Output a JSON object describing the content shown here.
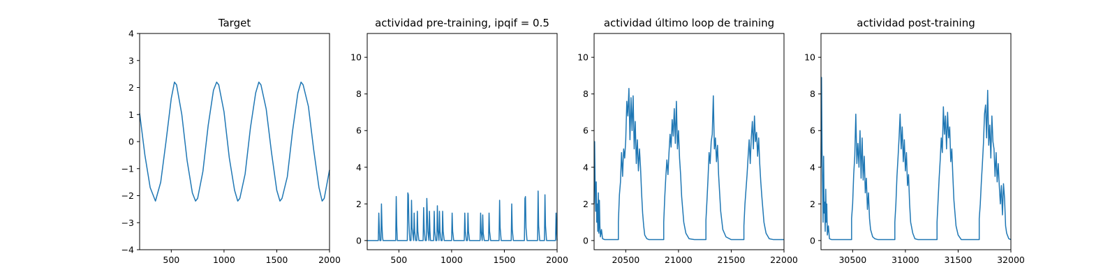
{
  "colors": {
    "series": "#1f77b4",
    "axes": "#000000"
  },
  "chart_data": [
    {
      "type": "line",
      "title": "Target",
      "xlabel": "",
      "ylabel": "",
      "xlim": [
        200,
        2000
      ],
      "ylim": [
        -4,
        4
      ],
      "xticks": [
        500,
        1000,
        1500,
        2000
      ],
      "yticks": [
        -4,
        -3,
        -2,
        -1,
        0,
        1,
        2,
        3,
        4
      ],
      "ytick_labels": [
        "−4",
        "−3",
        "−2",
        "−1",
        "0",
        "1",
        "2",
        "3",
        "4"
      ],
      "grid": false,
      "series": [
        {
          "x": [
            200,
            250,
            300,
            350,
            400,
            450,
            500,
            530,
            550,
            600,
            650,
            700,
            730,
            750,
            800,
            850,
            900,
            930,
            950,
            1000,
            1050,
            1100,
            1130,
            1150,
            1200,
            1250,
            1300,
            1330,
            1350,
            1400,
            1450,
            1500,
            1530,
            1550,
            1600,
            1650,
            1700,
            1730,
            1750,
            1800,
            1850,
            1900,
            1930,
            1950,
            2000
          ],
          "y": [
            1.05,
            -0.5,
            -1.7,
            -2.2,
            -1.5,
            0.0,
            1.6,
            2.2,
            2.1,
            1.0,
            -0.7,
            -1.9,
            -2.2,
            -2.1,
            -1.1,
            0.6,
            1.9,
            2.2,
            2.1,
            1.1,
            -0.6,
            -1.8,
            -2.2,
            -2.1,
            -1.2,
            0.5,
            1.8,
            2.2,
            2.1,
            1.2,
            -0.4,
            -1.8,
            -2.2,
            -2.1,
            -1.3,
            0.4,
            1.8,
            2.2,
            2.1,
            1.3,
            -0.3,
            -1.7,
            -2.2,
            -2.1,
            -1.05
          ]
        }
      ]
    },
    {
      "type": "line",
      "title": "actividad pre-training, ipqif = 0.5",
      "xlabel": "",
      "ylabel": "",
      "xlim": [
        200,
        2000
      ],
      "ylim": [
        -0.5,
        11.3
      ],
      "xticks": [
        500,
        1000,
        1500,
        2000
      ],
      "yticks": [
        0,
        2,
        4,
        6,
        8,
        10
      ],
      "grid": false,
      "series": [
        {
          "x": [
            200,
            305,
            310,
            315,
            320,
            330,
            335,
            340,
            345,
            350,
            360,
            370,
            470,
            475,
            480,
            485,
            495,
            500,
            580,
            585,
            590,
            595,
            600,
            605,
            615,
            620,
            625,
            640,
            645,
            650,
            660,
            670,
            675,
            680,
            690,
            700,
            730,
            735,
            740,
            750,
            760,
            765,
            770,
            775,
            785,
            790,
            795,
            800,
            810,
            820,
            830,
            835,
            840,
            850,
            860,
            865,
            870,
            880,
            885,
            890,
            900,
            910,
            915,
            920,
            930,
            940,
            1000,
            1005,
            1010,
            1020,
            1030,
            1120,
            1125,
            1130,
            1140,
            1150,
            1155,
            1160,
            1170,
            1180,
            1270,
            1275,
            1280,
            1290,
            1295,
            1300,
            1310,
            1320,
            1350,
            1355,
            1360,
            1370,
            1380,
            1450,
            1455,
            1460,
            1470,
            1480,
            1500,
            1565,
            1570,
            1575,
            1585,
            1595,
            1690,
            1695,
            1700,
            1705,
            1715,
            1725,
            1815,
            1820,
            1825,
            1835,
            1845,
            1880,
            1885,
            1890,
            1900,
            1910,
            1985,
            1990,
            1995,
            2000
          ],
          "y": [
            0,
            0,
            1.5,
            0.6,
            0,
            0,
            2.0,
            0.8,
            0.2,
            0,
            0,
            0,
            0,
            2.4,
            0.8,
            0,
            0,
            0,
            0,
            2.6,
            2.5,
            1.0,
            0.4,
            0,
            0,
            2.2,
            0.7,
            0,
            1.5,
            0.5,
            0,
            0,
            1.6,
            0.5,
            0,
            0,
            0,
            1.8,
            0.6,
            0,
            0,
            2.3,
            1.4,
            0.5,
            0,
            1.6,
            0.5,
            0,
            0,
            0,
            0,
            1.6,
            0.5,
            0,
            0,
            1.9,
            0.6,
            0,
            1.6,
            0.5,
            0,
            0,
            1.6,
            0.5,
            0,
            0,
            0,
            1.5,
            0.5,
            0,
            0,
            0,
            1.5,
            0.5,
            0,
            0,
            1.5,
            0.5,
            0,
            0,
            0,
            1.5,
            0.5,
            0,
            1.4,
            0.4,
            0,
            0,
            0,
            1.5,
            0.5,
            0,
            0,
            0,
            2.2,
            0.7,
            0,
            0,
            0,
            0,
            2.0,
            0.6,
            0,
            0,
            0,
            2.3,
            2.4,
            0.7,
            0,
            0,
            0,
            2.7,
            0.8,
            0,
            0,
            0,
            2.5,
            0.8,
            0,
            0,
            0,
            1.5,
            0.5,
            0
          ]
        }
      ]
    },
    {
      "type": "line",
      "title": "actividad último loop de training",
      "xlabel": "",
      "ylabel": "",
      "xlim": [
        20200,
        22000
      ],
      "ylim": [
        -0.5,
        11.3
      ],
      "xticks": [
        20500,
        21000,
        21500,
        22000
      ],
      "yticks": [
        0,
        2,
        4,
        6,
        8,
        10
      ],
      "grid": false,
      "series": [
        {
          "x": [
            20200,
            20205,
            20210,
            20215,
            20220,
            20225,
            20230,
            20235,
            20240,
            20245,
            20250,
            20255,
            20260,
            20270,
            20280,
            20300,
            20350,
            20400,
            20430,
            20430,
            20440,
            20450,
            20460,
            20470,
            20480,
            20490,
            20500,
            20510,
            20520,
            20530,
            20540,
            20550,
            20560,
            20570,
            20580,
            20590,
            20600,
            20610,
            20620,
            20630,
            20640,
            20650,
            20660,
            20670,
            20680,
            20700,
            20720,
            20750,
            20800,
            20860,
            20860,
            20870,
            20880,
            20890,
            20900,
            20910,
            20920,
            20930,
            20940,
            20950,
            20960,
            20970,
            20980,
            20990,
            21000,
            21010,
            21020,
            21030,
            21050,
            21070,
            21100,
            21150,
            21200,
            21260,
            21260,
            21270,
            21280,
            21290,
            21300,
            21310,
            21320,
            21330,
            21340,
            21350,
            21360,
            21370,
            21380,
            21390,
            21400,
            21420,
            21450,
            21500,
            21550,
            21620,
            21620,
            21630,
            21640,
            21650,
            21660,
            21670,
            21680,
            21690,
            21700,
            21710,
            21720,
            21730,
            21740,
            21750,
            21760,
            21770,
            21780,
            21790,
            21810,
            21830,
            21860,
            21900,
            21950,
            22000
          ],
          "y": [
            2.0,
            5.4,
            3.0,
            1.6,
            3.2,
            1.0,
            2.0,
            0.5,
            2.6,
            0.4,
            2.2,
            0.8,
            0.2,
            0.6,
            0.1,
            0.05,
            0.05,
            0.05,
            0.05,
            1.0,
            2.5,
            3.2,
            4.8,
            3.5,
            5.0,
            4.5,
            5.5,
            7.6,
            6.8,
            8.3,
            5.5,
            7.8,
            6.0,
            7.9,
            5.0,
            6.5,
            4.2,
            5.5,
            3.8,
            5.0,
            4.0,
            2.6,
            1.5,
            0.8,
            0.3,
            0.1,
            0.05,
            0.05,
            0.05,
            0.05,
            1.0,
            2.4,
            3.5,
            4.4,
            3.6,
            4.8,
            5.8,
            5.1,
            6.6,
            5.7,
            7.2,
            5.3,
            7.6,
            5.0,
            6.0,
            4.5,
            3.6,
            2.4,
            1.0,
            0.4,
            0.1,
            0.05,
            0.05,
            0.05,
            1.1,
            2.2,
            3.4,
            4.8,
            4.2,
            5.4,
            5.8,
            7.9,
            5.0,
            5.6,
            4.3,
            5.2,
            3.6,
            2.6,
            1.6,
            0.6,
            0.2,
            0.05,
            0.05,
            0.05,
            0.8,
            2.0,
            2.8,
            3.6,
            4.6,
            5.5,
            4.2,
            5.6,
            6.5,
            5.0,
            6.8,
            5.4,
            5.9,
            4.6,
            5.6,
            4.2,
            3.2,
            2.4,
            1.0,
            0.4,
            0.1,
            0.05,
            0.05,
            0.05
          ]
        }
      ]
    },
    {
      "type": "line",
      "title": "actividad post-training",
      "xlabel": "",
      "ylabel": "",
      "xlim": [
        30200,
        32000
      ],
      "ylim": [
        -0.5,
        11.3
      ],
      "xticks": [
        30500,
        31000,
        31500,
        32000
      ],
      "yticks": [
        0,
        2,
        4,
        6,
        8,
        10
      ],
      "grid": false,
      "series": [
        {
          "x": [
            30200,
            30205,
            30210,
            30215,
            30220,
            30225,
            30230,
            30235,
            30240,
            30245,
            30250,
            30255,
            30260,
            30270,
            30280,
            30300,
            30350,
            30400,
            30450,
            30490,
            30490,
            30500,
            30510,
            30520,
            30530,
            30540,
            30550,
            30560,
            30570,
            30580,
            30590,
            30600,
            30610,
            30620,
            30630,
            30640,
            30650,
            30660,
            30670,
            30690,
            30710,
            30740,
            30800,
            30900,
            30900,
            30910,
            30920,
            30930,
            30940,
            30950,
            30960,
            30970,
            30980,
            30990,
            31000,
            31010,
            31020,
            31030,
            31040,
            31050,
            31070,
            31090,
            31120,
            31200,
            31300,
            31300,
            31310,
            31320,
            31330,
            31340,
            31350,
            31360,
            31370,
            31380,
            31390,
            31400,
            31410,
            31420,
            31430,
            31440,
            31450,
            31460,
            31480,
            31500,
            31530,
            31600,
            31700,
            31700,
            31710,
            31720,
            31730,
            31740,
            31750,
            31760,
            31770,
            31780,
            31790,
            31800,
            31810,
            31820,
            31830,
            31840,
            31850,
            31860,
            31870,
            31880,
            31890,
            31900,
            31910,
            31920,
            31930,
            31940,
            31950,
            31960,
            31980,
            32000
          ],
          "y": [
            4.0,
            8.9,
            5.0,
            3.0,
            1.0,
            4.6,
            1.5,
            2.1,
            0.5,
            2.8,
            1.0,
            2.0,
            0.3,
            0.8,
            0.1,
            0.05,
            0.05,
            0.05,
            0.05,
            0.05,
            1.2,
            2.0,
            3.6,
            4.6,
            6.9,
            4.2,
            5.3,
            4.0,
            6.0,
            3.4,
            5.6,
            3.3,
            4.6,
            2.6,
            3.4,
            1.7,
            2.6,
            1.2,
            0.6,
            0.2,
            0.1,
            0.05,
            0.05,
            0.05,
            1.0,
            2.0,
            3.5,
            4.5,
            5.6,
            6.9,
            5.0,
            6.2,
            4.3,
            5.5,
            3.8,
            4.8,
            3.0,
            3.6,
            2.0,
            1.0,
            0.4,
            0.1,
            0.05,
            0.05,
            0.05,
            1.0,
            2.2,
            3.4,
            4.4,
            5.6,
            4.8,
            7.3,
            5.8,
            6.8,
            5.0,
            7.0,
            5.6,
            6.2,
            4.3,
            5.0,
            3.5,
            2.2,
            0.8,
            0.3,
            0.05,
            0.05,
            0.05,
            1.2,
            2.0,
            3.2,
            4.2,
            5.3,
            6.9,
            7.4,
            5.6,
            8.2,
            5.2,
            6.3,
            4.5,
            6.8,
            5.4,
            5.0,
            3.5,
            4.8,
            3.2,
            4.2,
            3.0,
            2.0,
            3.0,
            1.4,
            3.1,
            2.3,
            0.8,
            0.4,
            0.1,
            0.05
          ]
        }
      ]
    }
  ]
}
